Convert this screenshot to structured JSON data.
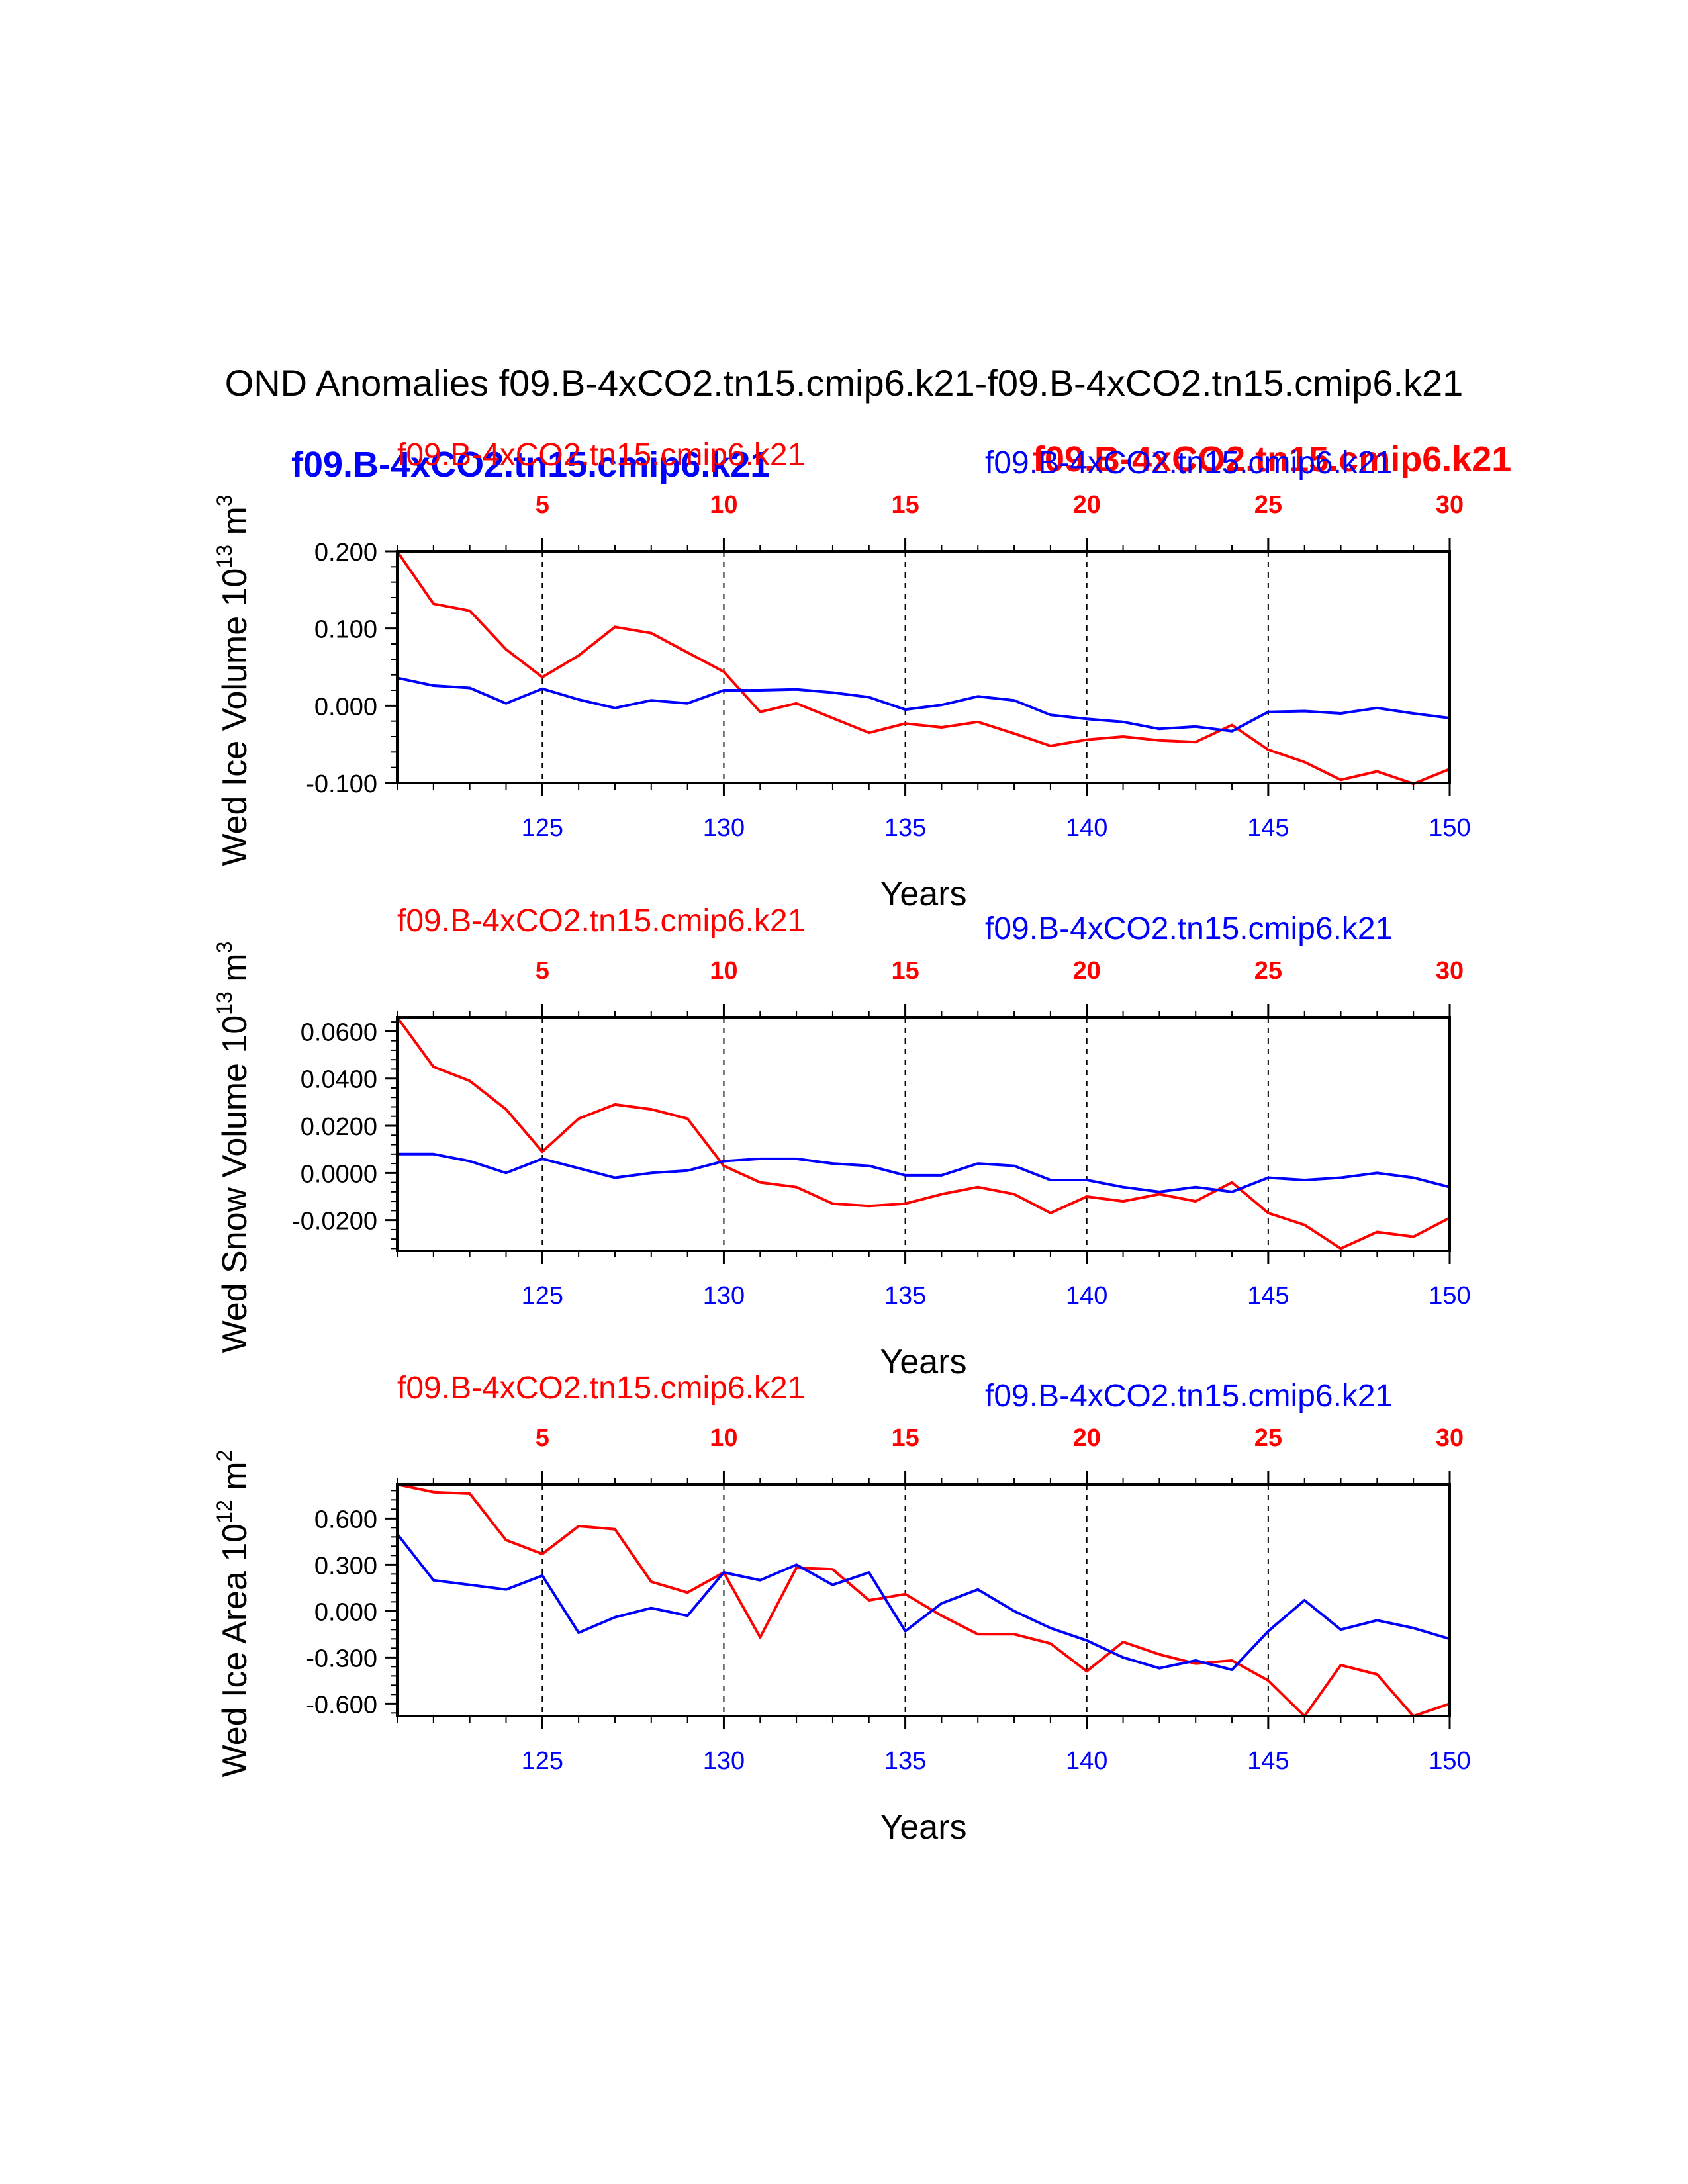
{
  "page_title": "OND Anomalies f09.B-4xCO2.tn15.cmip6.k21-f09.B-4xCO2.tn15.cmip6.k21",
  "overlay_labels": {
    "blue": "f09.B-4xCO2.tn15.cmip6.k21",
    "red": "f09.B-4xCO2.tn15.cmip6.k21"
  },
  "colors": {
    "red": "#ff0000",
    "blue": "#0000ff",
    "axis": "#000000"
  },
  "chart_data": [
    {
      "type": "line",
      "ylabel": "Wed Ice Volume 10",
      "ylabel_exp": "13",
      "ylabel_unit": " m",
      "ylabel_unit_exp": "3",
      "xlabel": "Years",
      "top_left_label": "f09.B-4xCO2.tn15.cmip6.k21",
      "top_right_label": "f09.B-4xCO2.tn15.cmip6.k21",
      "xlim": [
        121,
        150
      ],
      "ylim": [
        -0.1,
        0.2
      ],
      "yticks": [
        -0.1,
        0.0,
        0.1,
        0.2
      ],
      "ytick_labels": [
        "-0.100",
        "0.000",
        "0.100",
        "0.200"
      ],
      "xticks_bottom": [
        125,
        130,
        135,
        140,
        145,
        150
      ],
      "xticks_top_labels": [
        "5",
        "10",
        "15",
        "20",
        "25",
        "30"
      ],
      "vlines": [
        125,
        130,
        135,
        140,
        145
      ],
      "x": [
        121,
        122,
        123,
        124,
        125,
        126,
        127,
        128,
        129,
        130,
        131,
        132,
        133,
        134,
        135,
        136,
        137,
        138,
        139,
        140,
        141,
        142,
        143,
        144,
        145,
        146,
        147,
        148,
        149,
        150
      ],
      "series": [
        {
          "name": "f09.B-4xCO2.tn15.cmip6.k21",
          "color": "red",
          "values": [
            0.2,
            0.132,
            0.123,
            0.073,
            0.037,
            0.065,
            0.102,
            0.094,
            0.069,
            0.044,
            -0.008,
            0.003,
            -0.016,
            -0.035,
            -0.023,
            -0.028,
            -0.021,
            -0.036,
            -0.052,
            -0.044,
            -0.04,
            -0.045,
            -0.047,
            -0.025,
            -0.057,
            -0.073,
            -0.096,
            -0.085,
            -0.101,
            -0.082
          ]
        },
        {
          "name": "f09.B-4xCO2.tn15.cmip6.k21",
          "color": "blue",
          "values": [
            0.036,
            0.026,
            0.023,
            0.003,
            0.022,
            0.008,
            -0.003,
            0.007,
            0.003,
            0.02,
            0.02,
            0.021,
            0.017,
            0.011,
            -0.005,
            0.001,
            0.012,
            0.007,
            -0.012,
            -0.017,
            -0.021,
            -0.03,
            -0.027,
            -0.033,
            -0.008,
            -0.007,
            -0.01,
            -0.003,
            -0.01,
            -0.016
          ]
        }
      ]
    },
    {
      "type": "line",
      "ylabel": "Wed Snow Volume 10",
      "ylabel_exp": "13",
      "ylabel_unit": " m",
      "ylabel_unit_exp": "3",
      "xlabel": "Years",
      "top_left_label": "f09.B-4xCO2.tn15.cmip6.k21",
      "top_right_label": "f09.B-4xCO2.tn15.cmip6.k21",
      "xlim": [
        121,
        150
      ],
      "ylim": [
        -0.033,
        0.066
      ],
      "yticks": [
        -0.02,
        0.0,
        0.02,
        0.04,
        0.06
      ],
      "ytick_labels": [
        "-0.0200",
        "0.0000",
        "0.0200",
        "0.0400",
        "0.0600"
      ],
      "xticks_bottom": [
        125,
        130,
        135,
        140,
        145,
        150
      ],
      "xticks_top_labels": [
        "5",
        "10",
        "15",
        "20",
        "25",
        "30"
      ],
      "vlines": [
        125,
        130,
        135,
        140,
        145
      ],
      "x": [
        121,
        122,
        123,
        124,
        125,
        126,
        127,
        128,
        129,
        130,
        131,
        132,
        133,
        134,
        135,
        136,
        137,
        138,
        139,
        140,
        141,
        142,
        143,
        144,
        145,
        146,
        147,
        148,
        149,
        150
      ],
      "series": [
        {
          "name": "f09.B-4xCO2.tn15.cmip6.k21",
          "color": "red",
          "values": [
            0.066,
            0.045,
            0.039,
            0.027,
            0.009,
            0.023,
            0.029,
            0.027,
            0.023,
            0.003,
            -0.004,
            -0.006,
            -0.013,
            -0.014,
            -0.013,
            -0.009,
            -0.006,
            -0.009,
            -0.017,
            -0.01,
            -0.012,
            -0.009,
            -0.012,
            -0.004,
            -0.017,
            -0.022,
            -0.032,
            -0.025,
            -0.027,
            -0.019
          ]
        },
        {
          "name": "f09.B-4xCO2.tn15.cmip6.k21",
          "color": "blue",
          "values": [
            0.008,
            0.008,
            0.005,
            0.0,
            0.006,
            0.002,
            -0.002,
            0.0,
            0.001,
            0.005,
            0.006,
            0.006,
            0.004,
            0.003,
            -0.001,
            -0.001,
            0.004,
            0.003,
            -0.003,
            -0.003,
            -0.006,
            -0.008,
            -0.006,
            -0.008,
            -0.002,
            -0.003,
            -0.002,
            0.0,
            -0.002,
            -0.006
          ]
        }
      ]
    },
    {
      "type": "line",
      "ylabel": "Wed Ice Area 10",
      "ylabel_exp": "12",
      "ylabel_unit": " m",
      "ylabel_unit_exp": "2",
      "xlabel": "Years",
      "top_left_label": "f09.B-4xCO2.tn15.cmip6.k21",
      "top_right_label": "f09.B-4xCO2.tn15.cmip6.k21",
      "xlim": [
        121,
        150
      ],
      "ylim": [
        -0.68,
        0.82
      ],
      "yticks": [
        -0.6,
        -0.3,
        0.0,
        0.3,
        0.6
      ],
      "ytick_labels": [
        "-0.600",
        "-0.300",
        "0.000",
        "0.300",
        "0.600"
      ],
      "xticks_bottom": [
        125,
        130,
        135,
        140,
        145,
        150
      ],
      "xticks_top_labels": [
        "5",
        "10",
        "15",
        "20",
        "25",
        "30"
      ],
      "vlines": [
        125,
        130,
        135,
        140,
        145
      ],
      "x": [
        121,
        122,
        123,
        124,
        125,
        126,
        127,
        128,
        129,
        130,
        131,
        132,
        133,
        134,
        135,
        136,
        137,
        138,
        139,
        140,
        141,
        142,
        143,
        144,
        145,
        146,
        147,
        148,
        149,
        150
      ],
      "series": [
        {
          "name": "f09.B-4xCO2.tn15.cmip6.k21",
          "color": "red",
          "values": [
            0.82,
            0.77,
            0.76,
            0.46,
            0.37,
            0.55,
            0.53,
            0.19,
            0.12,
            0.25,
            -0.17,
            0.28,
            0.27,
            0.07,
            0.11,
            -0.03,
            -0.15,
            -0.15,
            -0.21,
            -0.39,
            -0.2,
            -0.28,
            -0.34,
            -0.32,
            -0.45,
            -0.68,
            -0.35,
            -0.41,
            -0.68,
            -0.6
          ]
        },
        {
          "name": "f09.B-4xCO2.tn15.cmip6.k21",
          "color": "blue",
          "values": [
            0.5,
            0.2,
            0.17,
            0.14,
            0.23,
            -0.14,
            -0.04,
            0.02,
            -0.03,
            0.25,
            0.2,
            0.3,
            0.17,
            0.25,
            -0.13,
            0.05,
            0.14,
            0.0,
            -0.11,
            -0.19,
            -0.3,
            -0.37,
            -0.32,
            -0.38,
            -0.13,
            0.07,
            -0.12,
            -0.06,
            -0.11,
            -0.18
          ]
        }
      ]
    }
  ]
}
